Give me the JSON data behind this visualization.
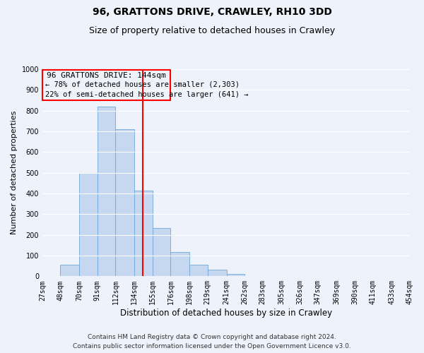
{
  "title": "96, GRATTONS DRIVE, CRAWLEY, RH10 3DD",
  "subtitle": "Size of property relative to detached houses in Crawley",
  "xlabel": "Distribution of detached houses by size in Crawley",
  "ylabel": "Number of detached properties",
  "bin_edges": [
    27,
    48,
    70,
    91,
    112,
    134,
    155,
    176,
    198,
    219,
    241,
    262,
    283,
    305,
    326,
    347,
    369,
    390,
    411,
    433,
    454
  ],
  "bin_labels": [
    "27sqm",
    "48sqm",
    "70sqm",
    "91sqm",
    "112sqm",
    "134sqm",
    "155sqm",
    "176sqm",
    "198sqm",
    "219sqm",
    "241sqm",
    "262sqm",
    "283sqm",
    "305sqm",
    "326sqm",
    "347sqm",
    "369sqm",
    "390sqm",
    "411sqm",
    "433sqm",
    "454sqm"
  ],
  "counts": [
    0,
    55,
    500,
    820,
    710,
    415,
    232,
    117,
    55,
    32,
    13,
    0,
    0,
    0,
    0,
    0,
    0,
    0,
    0,
    0
  ],
  "bar_color": "#c5d8f0",
  "bar_edge_color": "#6ea8d8",
  "property_line_x": 144,
  "property_line_color": "red",
  "ylim": [
    0,
    1000
  ],
  "yticks": [
    0,
    100,
    200,
    300,
    400,
    500,
    600,
    700,
    800,
    900,
    1000
  ],
  "annotation_title": "96 GRATTONS DRIVE: 144sqm",
  "annotation_line1": "← 78% of detached houses are smaller (2,303)",
  "annotation_line2": "22% of semi-detached houses are larger (641) →",
  "annotation_box_edgecolor": "red",
  "footer_line1": "Contains HM Land Registry data © Crown copyright and database right 2024.",
  "footer_line2": "Contains public sector information licensed under the Open Government Licence v3.0.",
  "background_color": "#eef2fb",
  "grid_color": "#ffffff",
  "title_fontsize": 10,
  "subtitle_fontsize": 9,
  "xlabel_fontsize": 8.5,
  "ylabel_fontsize": 8,
  "tick_fontsize": 7,
  "footer_fontsize": 6.5,
  "annotation_fontsize": 8
}
